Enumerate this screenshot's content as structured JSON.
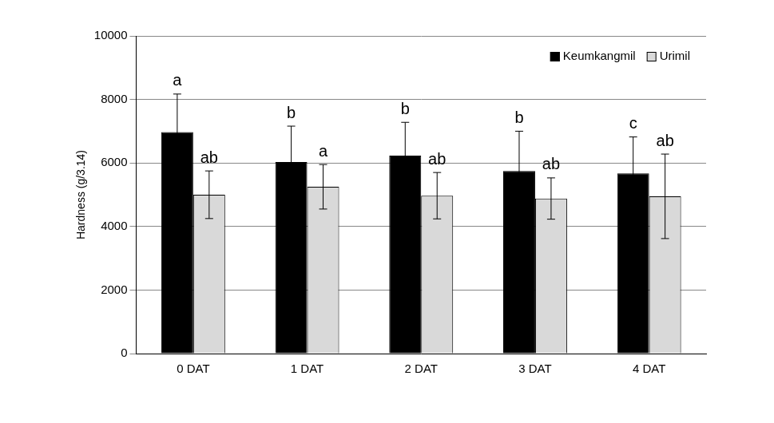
{
  "chart_data": {
    "type": "bar",
    "y_label": "Hardness (g/3.14)",
    "categories": [
      "0 DAT",
      "1 DAT",
      "2 DAT",
      "3 DAT",
      "4 DAT"
    ],
    "series": [
      {
        "name": "Keumkangmil",
        "color": "#000000",
        "values": [
          6970,
          6030,
          6230,
          5750,
          5670
        ],
        "errors": [
          1200,
          1130,
          1050,
          1250,
          1150
        ],
        "letters": [
          "a",
          "b",
          "b",
          "b",
          "c"
        ]
      },
      {
        "name": "Urimil",
        "color": "#d9d9d9",
        "values": [
          5000,
          5250,
          4970,
          4880,
          4950
        ],
        "errors": [
          750,
          700,
          730,
          650,
          1330
        ],
        "letters": [
          "ab",
          "a",
          "ab",
          "ab",
          "ab"
        ]
      }
    ],
    "ylim": [
      0,
      10000
    ],
    "yticks": [
      0,
      2000,
      4000,
      6000,
      8000,
      10000
    ],
    "grid": true,
    "legend": "upper right"
  }
}
